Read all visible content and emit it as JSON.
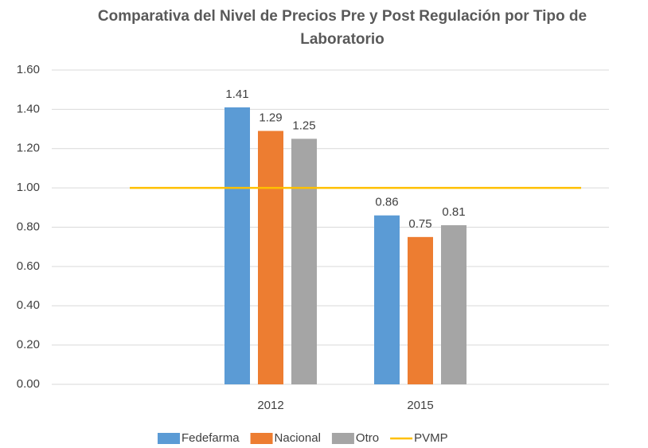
{
  "chart_data": {
    "type": "bar",
    "title": "Comparativa del Nivel de Precios Pre y Post Regulación por Tipo de Laboratorio",
    "categories": [
      "2012",
      "2015"
    ],
    "series": [
      {
        "name": "Fedefarma",
        "color": "#5b9bd5",
        "values": [
          1.41,
          0.86
        ]
      },
      {
        "name": "Nacional",
        "color": "#ed7d31",
        "values": [
          1.29,
          0.75
        ]
      },
      {
        "name": "Otro",
        "color": "#a5a5a5",
        "values": [
          1.25,
          0.81
        ]
      }
    ],
    "reference_line": {
      "name": "PVMP",
      "value": 1,
      "color": "#ffc000"
    },
    "ylim": [
      0,
      1.6
    ],
    "yticks": [
      {
        "value": 0,
        "label": "0.00"
      },
      {
        "value": 0.2,
        "label": "0.20"
      },
      {
        "value": 0.4,
        "label": "0.40"
      },
      {
        "value": 0.6,
        "label": "0.60"
      },
      {
        "value": 0.8,
        "label": "0.80"
      },
      {
        "value": 1,
        "label": "1.00"
      },
      {
        "value": 1.2,
        "label": "1.20"
      },
      {
        "value": 1.4,
        "label": "1.40"
      },
      {
        "value": 1.6,
        "label": "1.60"
      }
    ],
    "grid": true,
    "legend": "bottom"
  }
}
